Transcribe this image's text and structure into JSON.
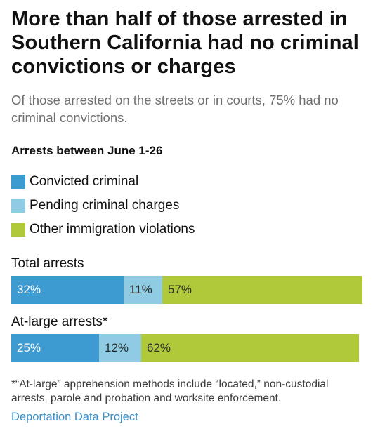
{
  "title": "More than half of those arrested in Southern California had no criminal convictions or charges",
  "subtitle": "Of those arrested on the streets or in courts, 75% had no criminal convictions.",
  "chart_data": {
    "type": "bar",
    "stacked": true,
    "orientation": "horizontal",
    "title": "Arrests between June 1-26",
    "categories": [
      "Total arrests",
      "At-large arrests*"
    ],
    "series": [
      {
        "name": "Convicted criminal",
        "color": "#3e9bd1",
        "values": [
          32,
          25
        ],
        "labels": [
          "32%",
          "25%"
        ]
      },
      {
        "name": "Pending criminal charges",
        "color": "#8fcbe3",
        "values": [
          11,
          12
        ],
        "labels": [
          "11%",
          "12%"
        ]
      },
      {
        "name": "Other immigration violations",
        "color": "#b0c93a",
        "values": [
          57,
          62
        ],
        "labels": [
          "57%",
          "62%"
        ]
      }
    ],
    "xlim": [
      0,
      100
    ],
    "legend": "top",
    "grid": false
  },
  "footnote": "*“At-large” apprehension methods include “located,” non-custodial arrests, parole and probation and worksite enforcement.",
  "source": "Deportation Data Project"
}
